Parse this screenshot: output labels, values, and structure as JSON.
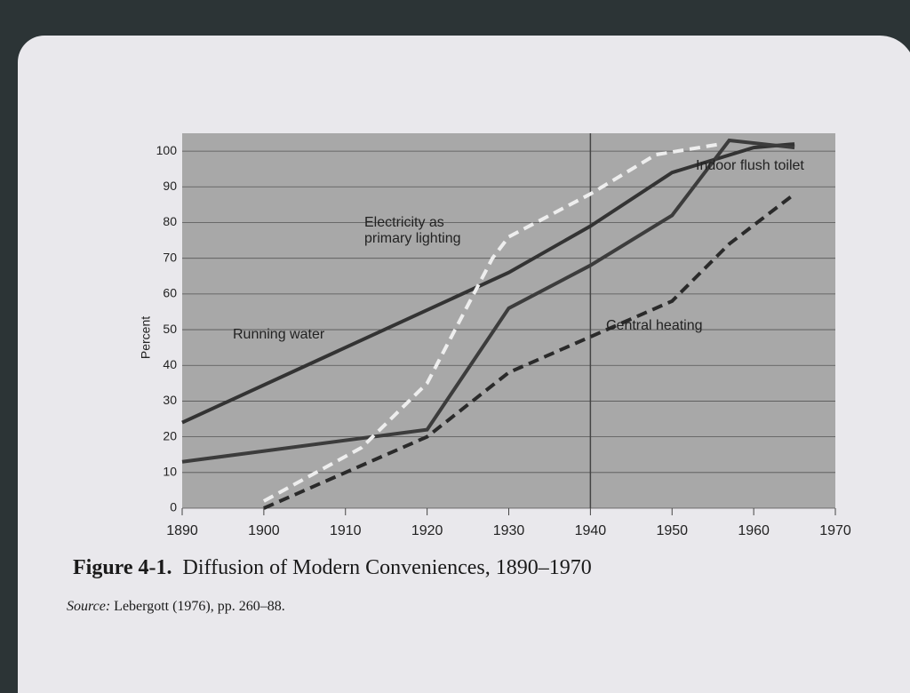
{
  "chart_data": {
    "type": "line",
    "figure_label": "Figure 4-1.",
    "title": "Diffusion of Modern Conveniences, 1890–1970",
    "source_label": "Source:",
    "source": "Lebergott (1976), pp. 260–88.",
    "ylabel": "Percent",
    "xlim": [
      1890,
      1970
    ],
    "xticks": [
      1890,
      1900,
      1910,
      1920,
      1930,
      1940,
      1950,
      1960,
      1970
    ],
    "ylim": [
      0,
      105
    ],
    "yticks": [
      0,
      10,
      20,
      30,
      40,
      50,
      60,
      70,
      80,
      90,
      100
    ],
    "grid": true,
    "series": [
      {
        "name": "Running water",
        "color": "#333333",
        "dash": false,
        "x": [
          1890,
          1930,
          1940,
          1950,
          1960,
          1965
        ],
        "values": [
          24,
          66,
          79,
          94,
          101,
          102
        ]
      },
      {
        "name": "Indoor flush toilet",
        "color": "#3c3c3c",
        "dash": false,
        "x": [
          1890,
          1920,
          1930,
          1940,
          1950,
          1957,
          1965
        ],
        "values": [
          13,
          22,
          56,
          68,
          82,
          103,
          101
        ]
      },
      {
        "name": "Electricity as primary lighting",
        "color": "#eeeeee",
        "dash": true,
        "x": [
          1900,
          1912,
          1920,
          1928,
          1930,
          1940,
          1948,
          1956
        ],
        "values": [
          2,
          17,
          35,
          70,
          76,
          88,
          99,
          102
        ]
      },
      {
        "name": "Central heating",
        "color": "#2a2a2a",
        "dash": true,
        "x": [
          1900,
          1920,
          1930,
          1940,
          1950,
          1957,
          1965
        ],
        "values": [
          0,
          20,
          38,
          48,
          58,
          74,
          88
        ]
      }
    ]
  }
}
